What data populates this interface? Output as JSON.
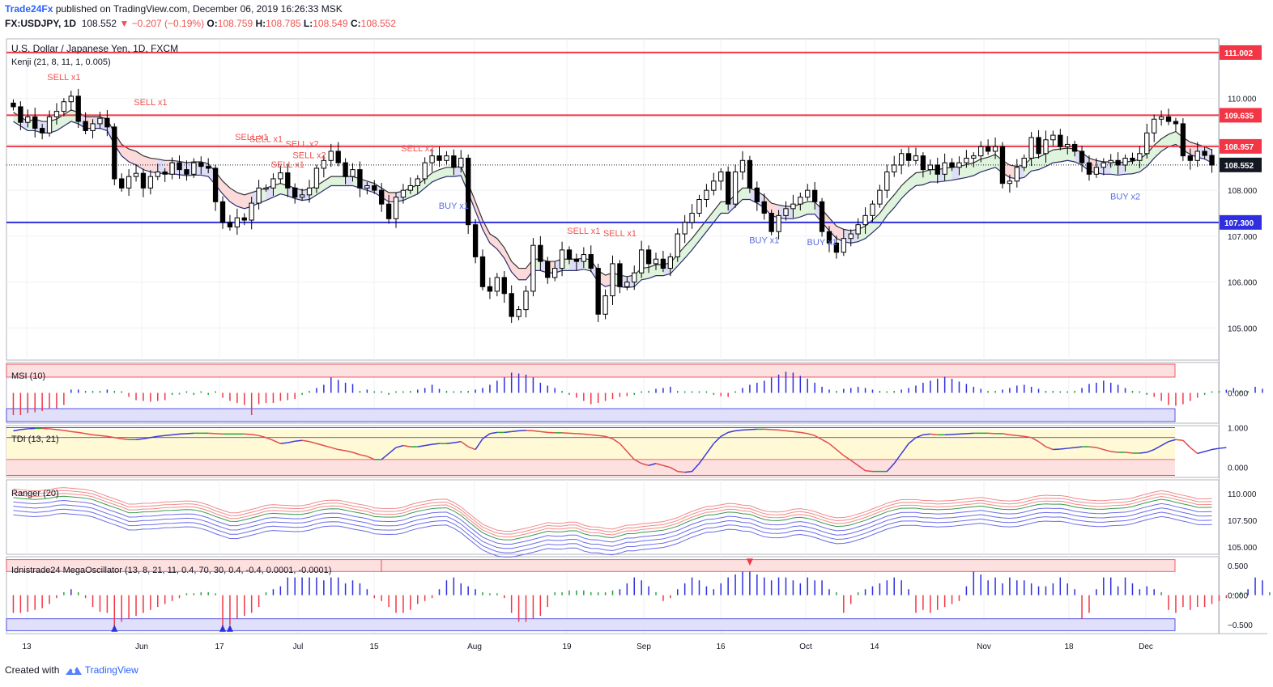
{
  "header": {
    "publisher": "Trade24Fx",
    "published_text": "published on TradingView.com, December 06, 2019 16:26:33 MSK",
    "symbol": "FX:USDJPY, 1D",
    "last": "108.552",
    "change_arrow": "▼",
    "change": "−0.207 (−0.19%)",
    "o_label": "O:",
    "o": "108.759",
    "h_label": "H:",
    "h": "108.785",
    "l_label": "L:",
    "l": "108.549",
    "c_label": "C:",
    "c": "108.552"
  },
  "footer": {
    "created_with": "Created with",
    "brand": "TradingView"
  },
  "colors": {
    "up": "#ffffff",
    "down": "#000000",
    "red_line": "#f23645",
    "blue_line": "#2f2fe0",
    "sell": "#ef5350",
    "buy": "#5b6ee1",
    "cloud_red": "#fbd4d4",
    "cloud_green": "#d9f2d6",
    "cloud_blue": "#d8d8f6"
  },
  "chart_data": [
    {
      "type": "candlestick",
      "title": "U.S. Dollar / Japanese Yen, 1D, FXCM",
      "indicator_label": "Kenji (21, 8, 11, 1, 0.005)",
      "x_ticks": [
        "13",
        "Jun",
        "17",
        "Jul",
        "15",
        "Aug",
        "19",
        "Sep",
        "16",
        "Oct",
        "14",
        "Nov",
        "18",
        "Dec"
      ],
      "y_ticks": [
        "110.000",
        "109.000",
        "108.000",
        "107.000",
        "106.000",
        "105.000"
      ],
      "ylim": [
        104.3,
        111.3
      ],
      "close": [
        109.82,
        109.48,
        109.6,
        109.35,
        109.25,
        109.6,
        109.72,
        109.93,
        110.05,
        109.5,
        109.3,
        109.45,
        109.57,
        109.38,
        108.25,
        108.05,
        108.3,
        108.37,
        108.05,
        108.3,
        108.4,
        108.35,
        108.6,
        108.45,
        108.35,
        108.6,
        108.52,
        108.48,
        107.75,
        107.3,
        107.2,
        107.4,
        107.35,
        107.72,
        108.05,
        108.05,
        108.25,
        108.38,
        108.05,
        107.85,
        107.9,
        108.05,
        108.48,
        108.65,
        108.85,
        108.6,
        108.3,
        108.45,
        108.05,
        108.1,
        108.0,
        107.7,
        107.38,
        107.85,
        108.0,
        108.1,
        108.25,
        108.6,
        108.75,
        108.65,
        108.75,
        108.5,
        108.7,
        107.25,
        106.55,
        105.9,
        105.8,
        106.1,
        105.75,
        105.25,
        105.4,
        105.8,
        106.8,
        106.45,
        106.1,
        106.3,
        106.7,
        106.5,
        106.45,
        106.6,
        106.3,
        105.3,
        105.7,
        106.4,
        105.9,
        106.0,
        106.2,
        106.7,
        106.4,
        106.5,
        106.3,
        106.55,
        107.05,
        107.3,
        107.5,
        107.8,
        108.0,
        108.2,
        108.4,
        107.7,
        108.4,
        108.65,
        108.05,
        107.75,
        107.5,
        107.1,
        107.45,
        107.6,
        107.7,
        107.85,
        108.0,
        107.75,
        107.1,
        106.85,
        106.65,
        106.95,
        107.05,
        107.25,
        107.45,
        107.7,
        108.0,
        108.4,
        108.55,
        108.8,
        108.65,
        108.75,
        108.45,
        108.55,
        108.35,
        108.6,
        108.5,
        108.6,
        108.7,
        108.75,
        108.95,
        108.85,
        108.95,
        108.15,
        108.2,
        108.5,
        108.7,
        109.15,
        108.8,
        109.1,
        109.2,
        108.95,
        109.0,
        108.85,
        108.6,
        108.35,
        108.5,
        108.6,
        108.65,
        108.55,
        108.7,
        108.65,
        108.8,
        109.25,
        109.55,
        109.6,
        109.5,
        109.45,
        108.75,
        108.65,
        108.85,
        108.76,
        108.55
      ],
      "open_for_first": 109.9,
      "overlay_upper": [
        109.7,
        109.6,
        109.5,
        109.55,
        109.5,
        109.5,
        109.55,
        109.65,
        109.75,
        109.7,
        109.6,
        109.6,
        109.6,
        109.55,
        109.25,
        109.0,
        108.9,
        108.85,
        108.75,
        108.7,
        108.68,
        108.65,
        108.65,
        108.63,
        108.6,
        108.62,
        108.62,
        108.58,
        108.4,
        108.2,
        108.05,
        107.95,
        107.9,
        107.95,
        108.0,
        108.05,
        108.1,
        108.15,
        108.1,
        108.05,
        108.0,
        108.02,
        108.1,
        108.2,
        108.3,
        108.3,
        108.3,
        108.3,
        108.25,
        108.2,
        108.15,
        108.05,
        107.95,
        107.95,
        107.98,
        108.05,
        108.12,
        108.25,
        108.38,
        108.45,
        108.5,
        108.5,
        108.52,
        108.15,
        107.75,
        107.35,
        107.05,
        106.95,
        106.75,
        106.45,
        106.3,
        106.3,
        106.5,
        106.5,
        106.45,
        106.45,
        106.5,
        106.5,
        106.5,
        106.52,
        106.48,
        106.25,
        106.15,
        106.2,
        106.15,
        106.12,
        106.15,
        106.3,
        106.32,
        106.38,
        106.38,
        106.42,
        106.6,
        106.78,
        106.95,
        107.15,
        107.35,
        107.55,
        107.75,
        107.75,
        107.9,
        108.05,
        108.05,
        107.98,
        107.88,
        107.72,
        107.68,
        107.65,
        107.65,
        107.7,
        107.75,
        107.75,
        107.58,
        107.4,
        107.22,
        107.15,
        107.12,
        107.15,
        107.22,
        107.35,
        107.5,
        107.72,
        107.9,
        108.1,
        108.25,
        108.38,
        108.4,
        108.45,
        108.45,
        108.48,
        108.5,
        108.52,
        108.56,
        108.6,
        108.68,
        108.72,
        108.78,
        108.65,
        108.55,
        108.52,
        108.55,
        108.7,
        108.72,
        108.8,
        108.88,
        108.9,
        108.92,
        108.9,
        108.82,
        108.7,
        108.65,
        108.62,
        108.62,
        108.6,
        108.62,
        108.63,
        108.68,
        108.8,
        108.98,
        109.12,
        109.22,
        109.28,
        109.15,
        109.05,
        109.0,
        108.95,
        108.88
      ],
      "overlay_lower": [
        109.5,
        109.4,
        109.3,
        109.3,
        109.25,
        109.25,
        109.3,
        109.4,
        109.5,
        109.45,
        109.35,
        109.35,
        109.35,
        109.3,
        109.0,
        108.75,
        108.62,
        108.55,
        108.45,
        108.4,
        108.38,
        108.36,
        108.36,
        108.34,
        108.32,
        108.33,
        108.33,
        108.3,
        108.12,
        107.92,
        107.75,
        107.65,
        107.6,
        107.65,
        107.72,
        107.78,
        107.85,
        107.92,
        107.88,
        107.82,
        107.78,
        107.8,
        107.9,
        108.0,
        108.1,
        108.1,
        108.1,
        108.1,
        108.05,
        108.0,
        107.95,
        107.85,
        107.75,
        107.75,
        107.78,
        107.85,
        107.92,
        108.05,
        108.18,
        108.25,
        108.3,
        108.3,
        108.32,
        107.95,
        107.55,
        107.15,
        106.85,
        106.72,
        106.52,
        106.22,
        106.05,
        106.05,
        106.25,
        106.25,
        106.2,
        106.2,
        106.25,
        106.25,
        106.25,
        106.28,
        106.24,
        106.0,
        105.9,
        105.95,
        105.9,
        105.88,
        105.9,
        106.05,
        106.08,
        106.14,
        106.14,
        106.18,
        106.35,
        106.52,
        106.7,
        106.9,
        107.1,
        107.3,
        107.5,
        107.5,
        107.65,
        107.8,
        107.8,
        107.72,
        107.62,
        107.45,
        107.4,
        107.38,
        107.38,
        107.42,
        107.48,
        107.48,
        107.3,
        107.12,
        106.95,
        106.88,
        106.85,
        106.88,
        106.95,
        107.08,
        107.22,
        107.45,
        107.62,
        107.82,
        107.98,
        108.1,
        108.12,
        108.18,
        108.18,
        108.2,
        108.22,
        108.25,
        108.28,
        108.32,
        108.4,
        108.45,
        108.5,
        108.38,
        108.28,
        108.25,
        108.28,
        108.42,
        108.45,
        108.52,
        108.6,
        108.62,
        108.65,
        108.62,
        108.55,
        108.42,
        108.38,
        108.35,
        108.35,
        108.33,
        108.35,
        108.36,
        108.4,
        108.52,
        108.7,
        108.85,
        108.95,
        109.0,
        108.88,
        108.78,
        108.72,
        108.68,
        108.6
      ],
      "horizontal_levels": [
        {
          "value": 111.002,
          "label": "111.002",
          "color": "red"
        },
        {
          "value": 109.635,
          "label": "109.635",
          "color": "red"
        },
        {
          "value": 108.957,
          "label": "108.957",
          "color": "red"
        },
        {
          "value": 107.3,
          "label": "107.300",
          "color": "blue"
        }
      ],
      "last_price": {
        "value": 108.552,
        "label": "108.552"
      },
      "signals": [
        {
          "i": 7,
          "text": "SELL x1",
          "side": "sell",
          "price": 110.4
        },
        {
          "i": 19,
          "text": "SELL x1",
          "side": "sell",
          "price": 109.85
        },
        {
          "i": 33,
          "text": "SELL x1",
          "side": "sell",
          "price": 109.1
        },
        {
          "i": 35,
          "text": "SELL x1",
          "side": "sell",
          "price": 109.05
        },
        {
          "i": 41,
          "text": "SELL x2",
          "side": "sell",
          "price": 108.7
        },
        {
          "i": 40,
          "text": "SELL x2",
          "side": "sell",
          "price": 108.95
        },
        {
          "i": 38,
          "text": "SELL x1",
          "side": "sell",
          "price": 108.5
        },
        {
          "i": 56,
          "text": "SELL x2",
          "side": "sell",
          "price": 108.85
        },
        {
          "i": 61,
          "text": "BUY x1",
          "side": "buy",
          "price": 107.6
        },
        {
          "i": 79,
          "text": "SELL x1",
          "side": "sell",
          "price": 107.05
        },
        {
          "i": 84,
          "text": "SELL x1",
          "side": "sell",
          "price": 107.0
        },
        {
          "i": 104,
          "text": "BUY x1",
          "side": "buy",
          "price": 106.85
        },
        {
          "i": 112,
          "text": "BUY x1",
          "side": "buy",
          "price": 106.8
        },
        {
          "i": 154,
          "text": "BUY x2",
          "side": "buy",
          "price": 107.8
        }
      ]
    },
    {
      "type": "bar",
      "title": "MSI (10)",
      "y_ticks": [
        "0.000"
      ],
      "values": [
        -0.55,
        -0.55,
        -0.5,
        -0.48,
        -0.45,
        -0.4,
        -0.38,
        -0.3,
        0.08,
        0.08,
        0.05,
        0.05,
        0.05,
        0.08,
        0.05,
        0.0,
        -0.1,
        -0.18,
        -0.2,
        -0.22,
        -0.2,
        -0.18,
        -0.05,
        -0.04,
        -0.03,
        -0.05,
        -0.02,
        -0.05,
        -0.02,
        -0.12,
        -0.2,
        -0.25,
        -0.3,
        -0.55,
        -0.28,
        -0.25,
        -0.25,
        -0.2,
        -0.18,
        -0.15,
        -0.05,
        0.05,
        0.12,
        0.2,
        0.38,
        0.32,
        0.25,
        0.22,
        0.05,
        0.08,
        0.03,
        -0.03,
        -0.05,
        0.0,
        0.03,
        0.05,
        0.08,
        0.12,
        0.2,
        0.1,
        0.05,
        0.0,
        0.05,
        0.05,
        0.08,
        0.12,
        0.2,
        0.3,
        0.38,
        0.5,
        0.48,
        0.45,
        0.38,
        0.25,
        0.18,
        0.12,
        0.05,
        -0.05,
        -0.12,
        -0.2,
        -0.28,
        -0.25,
        -0.2,
        -0.15,
        -0.1,
        -0.08,
        -0.05,
        0.03,
        0.05,
        0.1,
        0.12,
        0.15,
        0.05,
        0.03,
        0.02,
        0.0,
        -0.03,
        -0.05,
        -0.08,
        -0.1,
        0.0,
        0.12,
        0.2,
        0.25,
        0.3,
        0.38,
        0.45,
        0.52,
        0.5,
        0.42,
        0.35,
        0.25,
        0.15,
        0.08,
        0.05,
        0.1,
        0.12,
        0.15,
        0.12,
        0.08,
        0.05,
        0.03,
        0.05,
        0.08,
        0.12,
        0.18,
        0.25,
        0.3,
        0.35,
        0.4,
        0.35,
        0.28,
        0.22,
        0.15,
        0.1,
        0.05,
        0.05,
        0.08,
        0.12,
        0.18,
        0.2,
        0.15,
        0.1,
        0.05,
        0.05,
        0.03,
        0.0,
        0.05,
        0.12,
        0.22,
        0.25,
        0.3,
        0.25,
        0.2,
        0.12,
        0.05,
        0.0,
        -0.05,
        -0.1,
        -0.2,
        -0.3,
        -0.32,
        -0.28,
        -0.2,
        -0.12,
        -0.05,
        0.02,
        0.05,
        0.08,
        0.12,
        0.0,
        0.05,
        0.15,
        0.1
      ],
      "ylim": [
        -0.75,
        0.75
      ]
    },
    {
      "type": "line",
      "title": "TDI (13, 21)",
      "y_ticks": [
        "1.000",
        "0.000"
      ],
      "values": [
        0.92,
        0.95,
        0.97,
        0.98,
        0.98,
        0.97,
        0.95,
        0.93,
        0.9,
        0.88,
        0.85,
        0.82,
        0.8,
        0.78,
        0.75,
        0.72,
        0.7,
        0.7,
        0.72,
        0.75,
        0.78,
        0.8,
        0.82,
        0.84,
        0.85,
        0.86,
        0.86,
        0.86,
        0.85,
        0.84,
        0.84,
        0.84,
        0.84,
        0.83,
        0.8,
        0.75,
        0.68,
        0.6,
        0.62,
        0.66,
        0.68,
        0.65,
        0.6,
        0.55,
        0.5,
        0.45,
        0.42,
        0.38,
        0.32,
        0.28,
        0.2,
        0.2,
        0.35,
        0.5,
        0.55,
        0.52,
        0.52,
        0.55,
        0.58,
        0.6,
        0.6,
        0.62,
        0.65,
        0.52,
        0.45,
        0.72,
        0.85,
        0.88,
        0.88,
        0.9,
        0.92,
        0.93,
        0.92,
        0.9,
        0.88,
        0.87,
        0.87,
        0.86,
        0.85,
        0.84,
        0.82,
        0.8,
        0.78,
        0.72,
        0.6,
        0.4,
        0.2,
        0.1,
        0.05,
        0.1,
        0.05,
        0.0,
        -0.1,
        -0.12,
        -0.1,
        0.1,
        0.35,
        0.6,
        0.78,
        0.88,
        0.92,
        0.94,
        0.95,
        0.96,
        0.96,
        0.95,
        0.94,
        0.92,
        0.9,
        0.88,
        0.85,
        0.8,
        0.7,
        0.6,
        0.45,
        0.3,
        0.18,
        0.05,
        -0.08,
        -0.1,
        -0.1,
        -0.1,
        0.1,
        0.35,
        0.6,
        0.75,
        0.82,
        0.84,
        0.82,
        0.82,
        0.83,
        0.84,
        0.85,
        0.86,
        0.86,
        0.86,
        0.85,
        0.85,
        0.82,
        0.8,
        0.78,
        0.75,
        0.65,
        0.52,
        0.45,
        0.46,
        0.48,
        0.5,
        0.52,
        0.52,
        0.5,
        0.45,
        0.4,
        0.38,
        0.38,
        0.36,
        0.36,
        0.38,
        0.45,
        0.55,
        0.65,
        0.7,
        0.68,
        0.5,
        0.35,
        0.4,
        0.45,
        0.48,
        0.5
      ],
      "ylim": [
        -0.25,
        1.05
      ]
    },
    {
      "type": "line",
      "title": "Ranger (20)",
      "y_ticks": [
        "110.000",
        "107.500",
        "105.000"
      ],
      "ylim": [
        104.3,
        111.3
      ]
    },
    {
      "type": "bar",
      "title": "Idnistrade24 MegaOscillator (13, 8, 21, 11, 0.4, 70, 30, 0.4, -0.4, 0.0001, -0.0001)",
      "y_ticks": [
        "0.500",
        "0.000",
        "−0.500"
      ],
      "values": [
        -0.3,
        -0.3,
        -0.28,
        -0.25,
        -0.22,
        -0.15,
        -0.05,
        0.05,
        0.1,
        0.05,
        -0.05,
        -0.2,
        -0.28,
        -0.3,
        -0.55,
        -0.45,
        -0.4,
        -0.35,
        -0.3,
        -0.25,
        -0.2,
        -0.15,
        -0.1,
        -0.05,
        -0.02,
        0.0,
        0.05,
        0.05,
        0.0,
        -0.55,
        -0.5,
        -0.4,
        -0.35,
        -0.3,
        -0.2,
        0.05,
        0.1,
        0.15,
        0.3,
        0.3,
        0.3,
        0.3,
        0.3,
        0.25,
        0.3,
        0.3,
        0.2,
        0.25,
        0.2,
        0.1,
        -0.05,
        -0.1,
        -0.2,
        -0.3,
        -0.3,
        -0.25,
        -0.15,
        -0.1,
        -0.05,
        0.1,
        0.25,
        0.3,
        0.2,
        0.15,
        0.1,
        0.05,
        0.0,
        0.0,
        -0.05,
        -0.3,
        -0.45,
        -0.45,
        -0.4,
        -0.35,
        -0.2,
        0.05,
        0.05,
        0.08,
        0.08,
        0.08,
        0.05,
        0.05,
        0.05,
        0.08,
        0.1,
        0.2,
        0.3,
        0.25,
        0.15,
        0.05,
        -0.1,
        -0.05,
        0.1,
        0.2,
        0.3,
        0.25,
        0.15,
        0.1,
        0.2,
        0.3,
        0.35,
        0.4,
        0.4,
        0.35,
        0.3,
        0.25,
        0.3,
        0.3,
        0.25,
        0.2,
        0.3,
        0.25,
        0.25,
        0.1,
        0.05,
        -0.3,
        -0.15,
        0.05,
        0.1,
        0.15,
        0.2,
        0.25,
        0.3,
        0.25,
        0.1,
        -0.3,
        -0.25,
        -0.3,
        -0.25,
        -0.2,
        -0.15,
        -0.1,
        0.15,
        0.4,
        0.35,
        0.25,
        0.3,
        0.2,
        0.3,
        0.25,
        0.25,
        0.2,
        0.15,
        0.15,
        0.2,
        0.3,
        0.2,
        0.1,
        -0.4,
        -0.3,
        0.1,
        0.3,
        0.3,
        0.15,
        0.3,
        0.2,
        0.1,
        0.15,
        0.1,
        0.05,
        -0.25,
        -0.3,
        -0.2,
        -0.25,
        -0.2,
        -0.2,
        -0.15,
        -0.1,
        -0.05,
        0.0,
        0.05,
        0.1,
        0.3,
        0.25,
        0.05,
        -0.1,
        -0.2,
        -0.2,
        -0.15,
        -0.25
      ],
      "ylim": [
        -0.65,
        0.65
      ]
    }
  ]
}
